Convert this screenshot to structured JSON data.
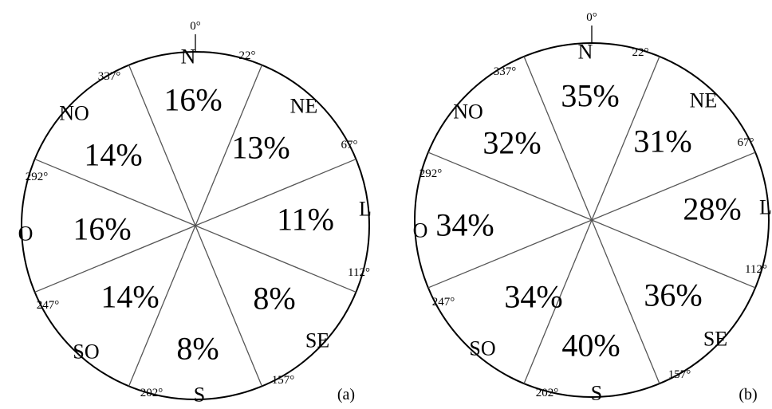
{
  "panels": [
    {
      "panel_label": "(a)",
      "top_angle": "0°",
      "sectors": [
        {
          "direction": "N",
          "value": "16%"
        },
        {
          "direction": "NE",
          "value": "13%"
        },
        {
          "direction": "L",
          "value": "11%"
        },
        {
          "direction": "SE",
          "value": "8%"
        },
        {
          "direction": "S",
          "value": "8%"
        },
        {
          "direction": "SO",
          "value": "14%"
        },
        {
          "direction": "O",
          "value": "16%"
        },
        {
          "direction": "NO",
          "value": "14%"
        }
      ],
      "boundaries": [
        "22°",
        "67°",
        "112°",
        "157°",
        "202°",
        "247°",
        "292°",
        "337°"
      ]
    },
    {
      "panel_label": "(b)",
      "top_angle": "0°",
      "sectors": [
        {
          "direction": "N",
          "value": "35%"
        },
        {
          "direction": "NE",
          "value": "31%"
        },
        {
          "direction": "L",
          "value": "28%"
        },
        {
          "direction": "SE",
          "value": "36%"
        },
        {
          "direction": "S",
          "value": "40%"
        },
        {
          "direction": "SO",
          "value": "34%"
        },
        {
          "direction": "O",
          "value": "34%"
        },
        {
          "direction": "NO",
          "value": "32%"
        }
      ],
      "boundaries": [
        "22°",
        "67°",
        "112°",
        "157°",
        "202°",
        "247°",
        "292°",
        "337°"
      ]
    }
  ]
}
